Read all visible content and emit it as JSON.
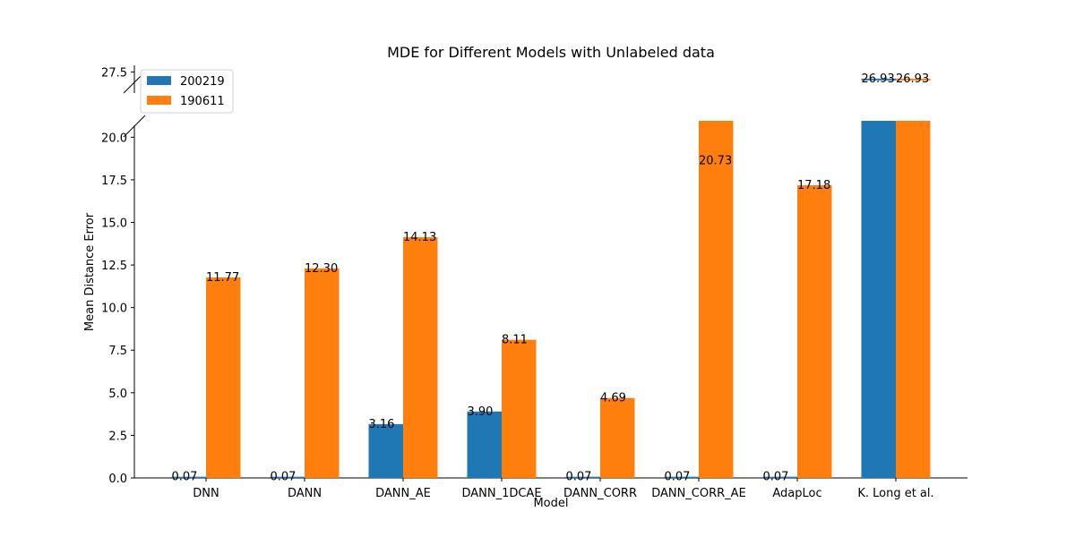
{
  "chart_data": {
    "type": "bar",
    "title": "MDE for Different Models with Unlabeled data",
    "xlabel": "Model",
    "ylabel": "Mean Distance Error",
    "categories": [
      "DNN",
      "DANN",
      "DANN_AE",
      "DANN_1DCAE",
      "DANN_CORR",
      "DANN_CORR_AE",
      "AdapLoc",
      "K. Long et al."
    ],
    "series": [
      {
        "name": "200219",
        "color": "#1f77b4",
        "values": [
          0.07,
          0.07,
          3.16,
          3.9,
          0.07,
          0.07,
          0.07,
          26.93
        ]
      },
      {
        "name": "190611",
        "color": "#ff7f0e",
        "values": [
          11.77,
          12.3,
          14.13,
          8.11,
          4.69,
          20.73,
          17.18,
          26.93
        ]
      }
    ],
    "value_labels": [
      [
        "0.07",
        "0.07",
        "3.16",
        "3.90",
        "0.07",
        "0.07",
        "0.07",
        "26.93"
      ],
      [
        "11.77",
        "12.30",
        "14.13",
        "8.11",
        "4.69",
        "20.73",
        "17.18",
        "26.93"
      ]
    ],
    "y_axis_lower": {
      "range": [
        0,
        20.7
      ],
      "ticks": [
        0.0,
        2.5,
        5.0,
        7.5,
        10.0,
        12.5,
        15.0,
        17.5,
        20.0
      ],
      "tick_labels": [
        "0.0",
        "2.5",
        "5.0",
        "7.5",
        "10.0",
        "12.5",
        "15.0",
        "17.5",
        "20.0"
      ]
    },
    "y_axis_upper": {
      "range": [
        25.9,
        28.0
      ],
      "ticks": [
        27.5
      ],
      "tick_labels": [
        "27.5"
      ]
    },
    "broken_axis": true,
    "legend_position": "top-left",
    "grid": false
  }
}
